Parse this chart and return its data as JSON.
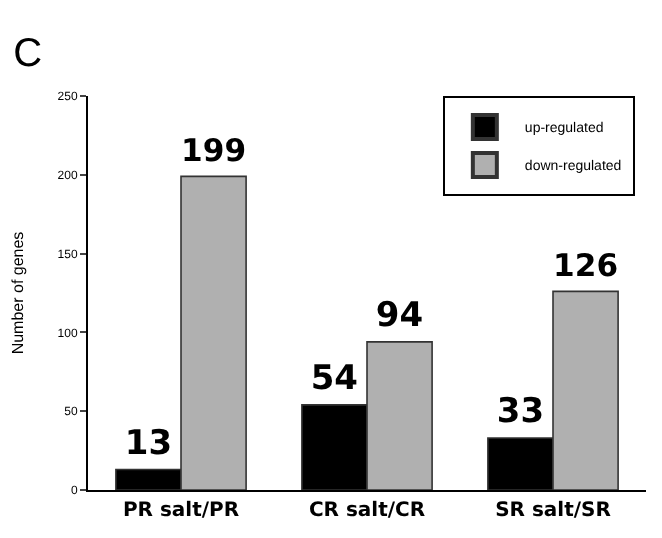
{
  "chart_data": {
    "type": "bar",
    "title": "C",
    "ylabel": "Number of genes",
    "categories": [
      "PR salt/PR",
      "CR salt/CR",
      "SR salt/SR"
    ],
    "series": [
      {
        "name": "up-regulated",
        "color": "#000000",
        "values": [
          13,
          54,
          33
        ]
      },
      {
        "name": "down-regulated",
        "color": "#b0b0b0",
        "values": [
          199,
          94,
          126
        ]
      }
    ],
    "ylim": [
      0,
      250
    ],
    "yticks": [
      0,
      50,
      100,
      150,
      200,
      250
    ],
    "legend": "top right",
    "data_labels": true
  }
}
